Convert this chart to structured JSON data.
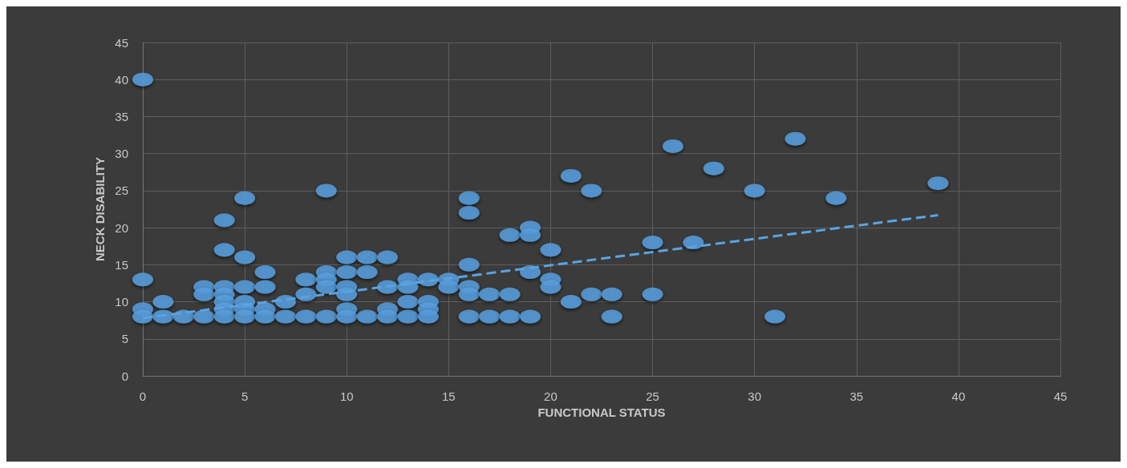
{
  "chart_data": {
    "type": "scatter",
    "xlabel": "FUNCTIONAL STATUS",
    "ylabel": "NECK DISABILITY",
    "xlim": [
      0,
      45
    ],
    "xticks": [
      0,
      5,
      10,
      15,
      20,
      25,
      30,
      35,
      40,
      45
    ],
    "ylim": [
      0,
      45
    ],
    "yticks": [
      0,
      5,
      10,
      15,
      20,
      25,
      30,
      35,
      40,
      45
    ],
    "grid": true,
    "marker": "circle",
    "series": [
      {
        "color": "#5ba3e3",
        "x": [
          0,
          0,
          0,
          0,
          1,
          1,
          2,
          3,
          3,
          3,
          4,
          4,
          4,
          4,
          4,
          4,
          4,
          5,
          5,
          5,
          5,
          5,
          5,
          6,
          6,
          6,
          6,
          7,
          7,
          8,
          8,
          8,
          9,
          9,
          9,
          9,
          9,
          10,
          10,
          10,
          10,
          10,
          10,
          11,
          11,
          11,
          12,
          12,
          12,
          12,
          13,
          13,
          13,
          13,
          14,
          14,
          14,
          14,
          15,
          15,
          16,
          16,
          16,
          16,
          16,
          16,
          17,
          17,
          18,
          18,
          18,
          19,
          19,
          19,
          19,
          20,
          20,
          20,
          21,
          21,
          22,
          22,
          23,
          23,
          25,
          25,
          26,
          27,
          28,
          30,
          31,
          32,
          34,
          39
        ],
        "values": [
          40,
          13,
          9,
          8,
          10,
          8,
          8,
          12,
          11,
          8,
          21,
          17,
          12,
          11,
          10,
          9,
          8,
          24,
          16,
          12,
          10,
          9,
          8,
          14,
          12,
          9,
          8,
          10,
          8,
          13,
          11,
          8,
          25,
          14,
          13,
          12,
          8,
          16,
          14,
          12,
          11,
          9,
          8,
          16,
          14,
          8,
          16,
          12,
          9,
          8,
          13,
          12,
          10,
          8,
          13,
          10,
          9,
          8,
          13,
          12,
          24,
          22,
          15,
          12,
          11,
          8,
          11,
          8,
          19,
          11,
          8,
          20,
          19,
          14,
          8,
          17,
          13,
          12,
          27,
          10,
          25,
          11,
          11,
          8,
          18,
          11,
          31,
          18,
          28,
          25,
          8,
          32,
          24,
          26
        ]
      },
      {
        "type": "line",
        "color": "#5ba3e3",
        "line_style": "dashed",
        "marker": "none",
        "x": [
          0,
          39
        ],
        "values": [
          7.8,
          21.7
        ]
      }
    ]
  }
}
